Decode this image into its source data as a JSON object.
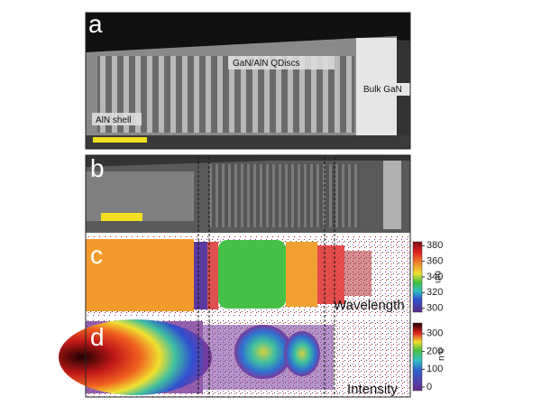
{
  "panels": [
    {
      "label": "a",
      "annotations": [
        "GaN/AlN QDiscs",
        "Bulk GaN",
        "AlN shell"
      ]
    },
    {
      "label": "b"
    },
    {
      "label": "c",
      "title": "Wavelength",
      "colorbar": {
        "unit": "nm",
        "clim": [
          295,
          385
        ],
        "ticks": [
          300,
          320,
          340,
          360,
          380
        ]
      }
    },
    {
      "label": "d",
      "title": "Intensity",
      "colorbar": {
        "unit": "a.u",
        "clim": [
          -20,
          360
        ],
        "ticks": [
          0,
          100,
          200,
          300
        ]
      }
    }
  ]
}
